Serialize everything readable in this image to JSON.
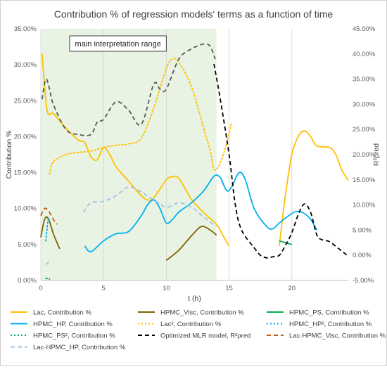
{
  "chart_data": {
    "type": "line",
    "title": "Contribution % of regression models' terms as a function of time",
    "xlabel": "t (h)",
    "ylabel": "Contribution %",
    "y2label": "R²pred",
    "xlim": [
      0,
      24.5
    ],
    "ylim": [
      0,
      35
    ],
    "y2lim": [
      -5,
      45
    ],
    "x_ticks": [
      0,
      5,
      10,
      15,
      20
    ],
    "y_ticks": [
      0,
      5,
      10,
      15,
      20,
      25,
      30,
      35
    ],
    "y_tick_labels": [
      "0.00%",
      "5.00%",
      "10.00%",
      "15.00%",
      "20.00%",
      "25.00%",
      "30.00%",
      "35.00%"
    ],
    "y2_ticks": [
      -5,
      0,
      5,
      10,
      15,
      20,
      25,
      30,
      35,
      40,
      45
    ],
    "y2_tick_labels": [
      "-5.00%",
      "0.00%",
      "5.00%",
      "10.00%",
      "15.00%",
      "20.00%",
      "25.00%",
      "30.00%",
      "35.00%",
      "40.00%",
      "45.00%"
    ],
    "grid": "vertical",
    "legend_position": "bottom",
    "annotation": {
      "text": "main interpretation range",
      "x_range": [
        0,
        14
      ]
    },
    "series": [
      {
        "name": "Lac, Contribution %",
        "axis": "left",
        "color": "#FFC000",
        "dash": "solid",
        "points": [
          [
            0.1,
            31.5
          ],
          [
            0.5,
            23.7
          ],
          [
            1,
            23.2
          ],
          [
            2,
            21.2
          ],
          [
            3,
            19.5
          ],
          [
            3.5,
            19.2
          ],
          [
            4,
            17.2
          ],
          [
            4.5,
            16.8
          ],
          [
            5,
            18.5
          ],
          [
            5.5,
            17.5
          ],
          [
            6,
            15.8
          ],
          [
            7,
            13.8
          ],
          [
            8,
            11.8
          ],
          [
            8.5,
            11.2
          ],
          [
            9,
            11.5
          ],
          [
            10,
            14
          ],
          [
            10.5,
            14.4
          ],
          [
            11,
            14.2
          ],
          [
            12,
            11.3
          ],
          [
            13,
            9.4
          ],
          [
            14,
            7.8
          ],
          [
            14.5,
            6.3
          ],
          [
            15,
            4.8
          ],
          null,
          [
            19,
            4.8
          ],
          [
            19.5,
            12
          ],
          [
            20,
            17.5
          ],
          [
            20.5,
            20
          ],
          [
            21,
            20.8
          ],
          [
            21.5,
            20
          ],
          [
            22,
            18.7
          ],
          [
            23,
            18.5
          ],
          [
            23.5,
            17.5
          ],
          [
            24,
            15.3
          ],
          [
            24.5,
            13.9
          ]
        ]
      },
      {
        "name": "HPMC_Visc, Contribution %",
        "axis": "left",
        "color": "#7F6000",
        "dash": "solid",
        "points": [
          [
            0,
            6
          ],
          [
            0.3,
            8.5
          ],
          [
            0.6,
            8.6
          ],
          [
            1,
            6.5
          ],
          [
            1.5,
            4.4
          ],
          null,
          [
            10,
            2.8
          ],
          [
            11,
            4.2
          ],
          [
            12,
            6.2
          ],
          [
            12.8,
            7.5
          ],
          [
            13.5,
            7
          ],
          [
            14,
            6.3
          ]
        ]
      },
      {
        "name": "HPMC_PS, Contribution %",
        "axis": "left",
        "color": "#00B050",
        "dash": "solid",
        "points": [
          [
            19,
            5.5
          ],
          [
            20,
            5
          ]
        ]
      },
      {
        "name": "HPMC_HP, Contribution %",
        "axis": "left",
        "color": "#00B0F0",
        "dash": "solid",
        "points": [
          [
            3.5,
            4.8
          ],
          [
            4,
            4
          ],
          [
            5,
            5.5
          ],
          [
            6,
            6.5
          ],
          [
            7,
            6.8
          ],
          [
            8,
            9
          ],
          [
            8.5,
            10.5
          ],
          [
            9,
            11.2
          ],
          [
            9.5,
            10
          ],
          [
            10,
            8
          ],
          [
            10.5,
            8.5
          ],
          [
            11,
            9.5
          ],
          [
            12,
            10.8
          ],
          [
            13,
            12.5
          ],
          [
            13.8,
            14.5
          ],
          [
            14.3,
            14.3
          ],
          [
            14.8,
            12.5
          ],
          [
            15.2,
            13
          ],
          [
            15.8,
            15
          ],
          [
            16.3,
            14
          ],
          [
            17,
            10
          ],
          [
            18,
            7.5
          ],
          [
            18.5,
            7.2
          ],
          [
            19,
            8
          ],
          [
            20,
            9.3
          ],
          [
            20.5,
            9.6
          ],
          [
            21,
            9.3
          ],
          [
            21.5,
            8.5
          ],
          [
            22,
            7
          ]
        ]
      },
      {
        "name": "Lac², Contribution %",
        "axis": "left",
        "color": "#FFC000",
        "dash": "dot",
        "points": [
          [
            0.7,
            14.8
          ],
          [
            1,
            16.5
          ],
          [
            2,
            17.5
          ],
          [
            3,
            17.8
          ],
          [
            4,
            18
          ],
          [
            5,
            18.5
          ],
          [
            6,
            18.8
          ],
          [
            7,
            19
          ],
          [
            8,
            19.8
          ],
          [
            9,
            24
          ],
          [
            10,
            29.5
          ],
          [
            10.5,
            30.8
          ],
          [
            11,
            30.3
          ],
          [
            12,
            27
          ],
          [
            13,
            21
          ],
          [
            13.5,
            18
          ],
          [
            13.8,
            15.5
          ],
          [
            14.2,
            16
          ],
          [
            14.8,
            19
          ],
          [
            15.2,
            22
          ]
        ]
      },
      {
        "name": "HPMC_HP², Contribution %",
        "axis": "left",
        "color": "#00B0F0",
        "dash": "dot",
        "points": [
          [
            0.4,
            5.5
          ],
          [
            0.6,
            8.8
          ]
        ]
      },
      {
        "name": "HPMC_PS², Contribution %",
        "axis": "left",
        "color": "#00B050",
        "dash": "dot",
        "points": [
          [
            0.4,
            0.3
          ],
          [
            0.7,
            0.2
          ]
        ]
      },
      {
        "name": "Optimized MLR model, R²pred",
        "axis": "right",
        "color": "#000000",
        "dash": "dash",
        "points": [
          [
            13.8,
            38
          ],
          [
            14.3,
            31
          ],
          [
            15,
            20
          ],
          [
            15.5,
            10
          ],
          [
            16,
            5
          ],
          [
            17,
            1.5
          ],
          [
            17.5,
            0
          ],
          [
            18,
            -0.5
          ],
          [
            18.5,
            -0.3
          ],
          [
            19,
            0
          ],
          [
            19.5,
            2
          ],
          [
            20,
            4.5
          ],
          [
            20.5,
            8
          ],
          [
            21,
            10.2
          ],
          [
            21.5,
            8.5
          ],
          [
            22,
            4
          ],
          [
            22.5,
            3
          ],
          [
            23,
            2.7
          ],
          [
            24,
            0.8
          ],
          [
            24.5,
            -0.2
          ]
        ]
      },
      {
        "name": "Lac·HPMC_Visc, Contribution %",
        "axis": "left",
        "color": "#C55A11",
        "dash": "dash",
        "points": [
          [
            0,
            9
          ],
          [
            0.3,
            10
          ],
          [
            0.6,
            9.7
          ],
          [
            1,
            8.5
          ],
          [
            1.3,
            7.8
          ]
        ]
      },
      {
        "name": "Lac·HPMC_HP, Contribution %",
        "axis": "left",
        "color": "#9DC3E6",
        "dash": "dash",
        "points": [
          [
            0.4,
            2.2
          ],
          [
            0.7,
            2.7
          ],
          null,
          [
            3.4,
            9.5
          ],
          [
            4,
            10.8
          ],
          [
            5,
            11
          ],
          [
            6,
            11.8
          ],
          [
            7,
            13
          ],
          [
            8,
            12.3
          ],
          [
            9,
            11.2
          ],
          [
            10,
            10.2
          ],
          [
            11,
            10.8
          ],
          [
            12,
            10.2
          ],
          [
            13,
            8.8
          ],
          [
            14,
            7.5
          ]
        ]
      },
      {
        "name": "",
        "axis": "right",
        "color": "#595959",
        "dash": "dash",
        "points": [
          [
            0.1,
            31
          ],
          [
            0.4,
            35
          ],
          [
            0.7,
            33
          ],
          [
            1,
            30
          ],
          [
            2,
            25
          ],
          [
            3,
            24
          ],
          [
            4,
            24
          ],
          [
            4.5,
            26.5
          ],
          [
            5,
            27
          ],
          [
            6,
            30.5
          ],
          [
            7,
            28.8
          ],
          [
            8,
            26
          ],
          [
            9,
            34
          ],
          [
            9.5,
            33
          ],
          [
            10,
            33
          ],
          [
            11,
            39
          ],
          [
            12,
            41
          ],
          [
            13,
            42
          ],
          [
            13.5,
            41.5
          ],
          [
            13.9,
            39
          ]
        ]
      }
    ]
  }
}
